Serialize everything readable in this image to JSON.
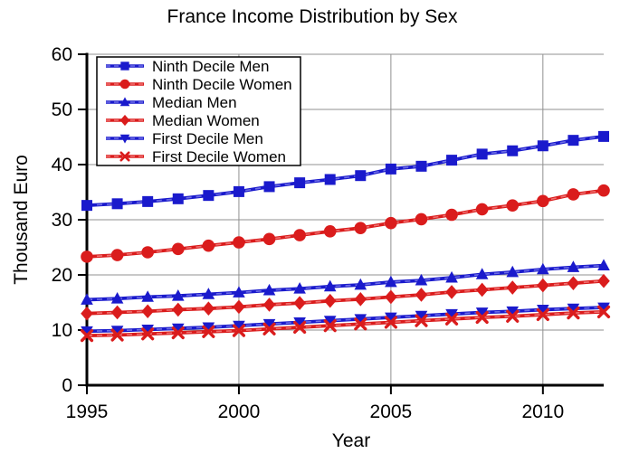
{
  "chart_data": {
    "type": "line",
    "title": "France Income Distribution by Sex",
    "xlabel": "Year",
    "ylabel": "Thousand Euro",
    "xlim": [
      1995,
      2012
    ],
    "ylim": [
      0,
      60
    ],
    "xticks": [
      1995,
      2000,
      2005,
      2010
    ],
    "yticks": [
      0,
      10,
      20,
      30,
      40,
      50,
      60
    ],
    "grid": true,
    "legend_position": "upper-left",
    "x": [
      1995,
      1996,
      1997,
      1998,
      1999,
      2000,
      2001,
      2002,
      2003,
      2004,
      2005,
      2006,
      2007,
      2008,
      2009,
      2010,
      2011,
      2012
    ],
    "series": [
      {
        "name": "Ninth Decile Men",
        "marker": "square",
        "color": "#1a1acc",
        "dash_color": "#6e6ee6",
        "values": [
          32.6,
          32.9,
          33.3,
          33.8,
          34.4,
          35.1,
          36.0,
          36.7,
          37.3,
          38.0,
          39.2,
          39.7,
          40.8,
          41.9,
          42.5,
          43.4,
          44.4,
          45.1
        ]
      },
      {
        "name": "Ninth Decile Women",
        "marker": "circle",
        "color": "#da1c1c",
        "dash_color": "#ef7070",
        "values": [
          23.3,
          23.6,
          24.1,
          24.7,
          25.3,
          25.9,
          26.5,
          27.2,
          27.9,
          28.5,
          29.4,
          30.1,
          30.9,
          31.9,
          32.6,
          33.4,
          34.6,
          35.3
        ]
      },
      {
        "name": "Median Men",
        "marker": "triangle-up",
        "color": "#1a1acc",
        "dash_color": "#6e6ee6",
        "values": [
          15.5,
          15.7,
          16.0,
          16.2,
          16.5,
          16.8,
          17.2,
          17.5,
          17.9,
          18.2,
          18.7,
          19.0,
          19.5,
          20.1,
          20.5,
          21.0,
          21.4,
          21.7
        ]
      },
      {
        "name": "Median Women",
        "marker": "diamond",
        "color": "#da1c1c",
        "dash_color": "#ef7070",
        "values": [
          13.0,
          13.2,
          13.4,
          13.7,
          13.9,
          14.2,
          14.6,
          14.9,
          15.3,
          15.6,
          16.0,
          16.4,
          16.9,
          17.3,
          17.7,
          18.1,
          18.5,
          18.9
        ]
      },
      {
        "name": "First Decile Men",
        "marker": "triangle-down",
        "color": "#1a1acc",
        "dash_color": "#6e6ee6",
        "values": [
          9.8,
          9.9,
          10.1,
          10.3,
          10.5,
          10.8,
          11.1,
          11.4,
          11.7,
          12.0,
          12.3,
          12.6,
          12.9,
          13.2,
          13.4,
          13.7,
          13.9,
          14.1
        ]
      },
      {
        "name": "First Decile Women",
        "marker": "x",
        "color": "#da1c1c",
        "dash_color": "#ef7070",
        "values": [
          9.0,
          9.1,
          9.3,
          9.5,
          9.7,
          9.9,
          10.2,
          10.5,
          10.8,
          11.1,
          11.4,
          11.7,
          12.0,
          12.3,
          12.5,
          12.8,
          13.1,
          13.3
        ]
      }
    ],
    "colors": {
      "men": "#1a1acc",
      "women": "#da1c1c",
      "grid": "#909090",
      "axis": "#000000"
    }
  }
}
